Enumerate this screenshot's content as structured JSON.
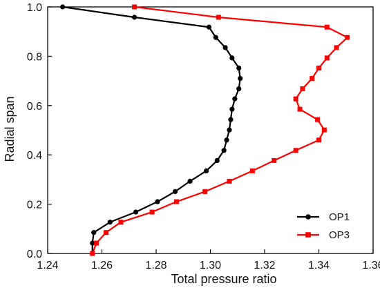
{
  "chart_data": {
    "type": "line",
    "xlabel": "Total pressure ratio",
    "ylabel": "Radial span",
    "xlim": [
      1.24,
      1.36
    ],
    "ylim": [
      0.0,
      1.0
    ],
    "xticks": [
      1.24,
      1.26,
      1.28,
      1.3,
      1.32,
      1.34,
      1.36
    ],
    "xtick_labels": [
      "1.24",
      "1.26",
      "1.28",
      "1.30",
      "1.32",
      "1.34",
      "1.36"
    ],
    "yticks": [
      0.0,
      0.2,
      0.4,
      0.6,
      0.8,
      1.0
    ],
    "ytick_labels": [
      "0.0",
      "0.2",
      "0.4",
      "0.6",
      "0.8",
      "1.0"
    ],
    "grid": false,
    "legend_position": "bottom-right",
    "series": [
      {
        "name": "OP1",
        "color": "#000000",
        "marker": "circle",
        "points": [
          [
            1.2565,
            0.0
          ],
          [
            1.2565,
            0.042
          ],
          [
            1.257,
            0.085
          ],
          [
            1.263,
            0.127
          ],
          [
            1.2725,
            0.168
          ],
          [
            1.2805,
            0.21
          ],
          [
            1.287,
            0.251
          ],
          [
            1.2925,
            0.293
          ],
          [
            1.2985,
            0.335
          ],
          [
            1.3025,
            0.377
          ],
          [
            1.305,
            0.418
          ],
          [
            1.306,
            0.46
          ],
          [
            1.307,
            0.501
          ],
          [
            1.3075,
            0.543
          ],
          [
            1.308,
            0.585
          ],
          [
            1.309,
            0.627
          ],
          [
            1.3105,
            0.668
          ],
          [
            1.311,
            0.71
          ],
          [
            1.3105,
            0.752
          ],
          [
            1.308,
            0.793
          ],
          [
            1.3055,
            0.835
          ],
          [
            1.302,
            0.876
          ],
          [
            1.2995,
            0.918
          ],
          [
            1.272,
            0.958
          ],
          [
            1.2455,
            1.0
          ]
        ]
      },
      {
        "name": "OP3",
        "color": "#ff0000",
        "marker": "square",
        "points": [
          [
            1.2565,
            0.0
          ],
          [
            1.258,
            0.042
          ],
          [
            1.2615,
            0.085
          ],
          [
            1.267,
            0.127
          ],
          [
            1.2785,
            0.168
          ],
          [
            1.2875,
            0.21
          ],
          [
            1.298,
            0.251
          ],
          [
            1.307,
            0.293
          ],
          [
            1.3155,
            0.335
          ],
          [
            1.3235,
            0.377
          ],
          [
            1.3315,
            0.418
          ],
          [
            1.34,
            0.46
          ],
          [
            1.342,
            0.501
          ],
          [
            1.3395,
            0.543
          ],
          [
            1.333,
            0.585
          ],
          [
            1.3315,
            0.627
          ],
          [
            1.334,
            0.668
          ],
          [
            1.3375,
            0.71
          ],
          [
            1.34,
            0.752
          ],
          [
            1.343,
            0.793
          ],
          [
            1.3465,
            0.835
          ],
          [
            1.3505,
            0.876
          ],
          [
            1.343,
            0.918
          ],
          [
            1.303,
            0.958
          ],
          [
            1.272,
            1.0
          ]
        ]
      }
    ]
  }
}
